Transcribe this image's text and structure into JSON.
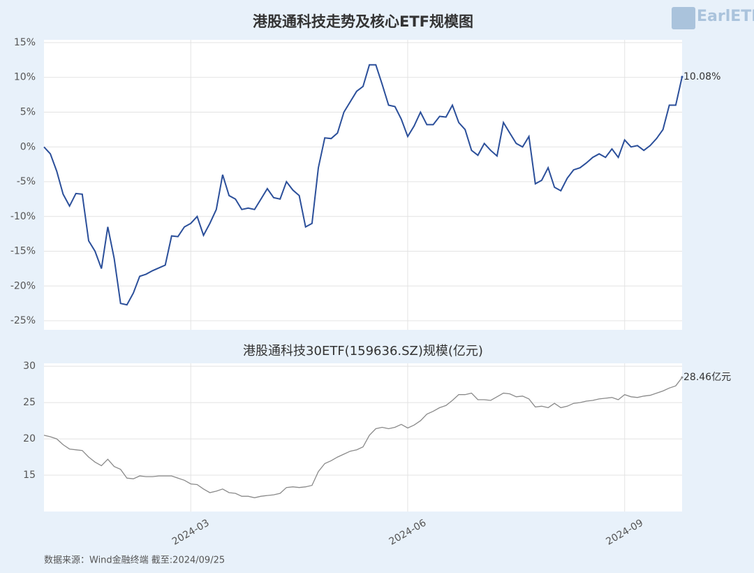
{
  "title": "港股通科技走势及核心ETF规模图",
  "logo": "EarlETF",
  "source": "数据来源：Wind金融终端 截至:2024/09/25",
  "chart_data": [
    {
      "type": "line",
      "color": "#2b4f9a",
      "ylim": [
        -26.3,
        15.4
      ],
      "yticks": [
        {
          "value": 15,
          "label": "15%"
        },
        {
          "value": 10,
          "label": "10%"
        },
        {
          "value": 5,
          "label": "5%"
        },
        {
          "value": 0,
          "label": "0%"
        },
        {
          "value": -5,
          "label": "-5%"
        },
        {
          "value": -10,
          "label": "-10%"
        },
        {
          "value": -15,
          "label": "-15%"
        },
        {
          "value": -20,
          "label": "-20%"
        },
        {
          "value": -25,
          "label": "-25%"
        }
      ],
      "grid": true,
      "annotation": "10.08%",
      "values": [
        0,
        -1,
        -3.5,
        -6.8,
        -8.5,
        -6.7,
        -6.8,
        -13.5,
        -15,
        -17.5,
        -11.5,
        -16,
        -22.5,
        -22.7,
        -21,
        -18.6,
        -18.3,
        -17.8,
        -17.4,
        -17,
        -12.8,
        -12.9,
        -11.5,
        -11,
        -10,
        -12.7,
        -11,
        -9,
        -4,
        -7,
        -7.5,
        -9,
        -8.8,
        -9,
        -7.5,
        -6,
        -7.3,
        -7.5,
        -5,
        -6.2,
        -7,
        -11.5,
        -11,
        -3,
        1.3,
        1.2,
        2,
        5,
        6.5,
        8,
        8.7,
        11.8,
        11.8,
        9,
        6,
        5.8,
        4,
        1.5,
        3,
        5,
        3.2,
        3.2,
        4.4,
        4.3,
        6,
        3.5,
        2.5,
        -0.5,
        -1.2,
        0.5,
        -0.5,
        -1.3,
        3.5,
        2,
        0.5,
        0,
        1.5,
        -5.3,
        -4.8,
        -3,
        -5.8,
        -6.3,
        -4.5,
        -3.3,
        -3,
        -2.3,
        -1.5,
        -1,
        -1.5,
        -0.3,
        -1.5,
        1,
        0,
        0.2,
        -0.5,
        0.2,
        1.2,
        2.5,
        6,
        6,
        10.08
      ]
    },
    {
      "type": "line",
      "title": "港股通科技30ETF(159636.SZ)规模(亿元)",
      "color": "#8a8a8a",
      "ylim": [
        10,
        30.4
      ],
      "yticks": [
        15,
        20,
        25,
        30
      ],
      "grid": true,
      "annotation": "28.46亿元",
      "categories": [
        null,
        null,
        null,
        null,
        null,
        null,
        null,
        null,
        null,
        null,
        null,
        null,
        null,
        null,
        null,
        null,
        null,
        null,
        null,
        null,
        null,
        null,
        null,
        "2024-03",
        null,
        null,
        null,
        null,
        null,
        null,
        null,
        null,
        null,
        null,
        null,
        null,
        null,
        null,
        null,
        null,
        null,
        null,
        null,
        null,
        null,
        null,
        null,
        null,
        null,
        null,
        null,
        null,
        null,
        null,
        null,
        null,
        null,
        "2024-06",
        null,
        null,
        null,
        null,
        null,
        null,
        null,
        null,
        null,
        null,
        null,
        null,
        null,
        null,
        null,
        null,
        null,
        null,
        null,
        null,
        null,
        null,
        null,
        null,
        null,
        null,
        null,
        null,
        null,
        null,
        null,
        null,
        null,
        "2024-09",
        null,
        null,
        null,
        null,
        null,
        null,
        null,
        null,
        null
      ],
      "values": [
        20.5,
        20.3,
        20,
        19.2,
        18.6,
        18.5,
        18.4,
        17.5,
        16.8,
        16.3,
        17.2,
        16.2,
        15.8,
        14.6,
        14.5,
        14.9,
        14.8,
        14.8,
        14.9,
        14.9,
        14.9,
        14.6,
        14.3,
        13.8,
        13.7,
        13.1,
        12.6,
        12.8,
        13.1,
        12.6,
        12.5,
        12.1,
        12.1,
        11.9,
        12.1,
        12.2,
        12.3,
        12.5,
        13.3,
        13.4,
        13.3,
        13.4,
        13.6,
        15.5,
        16.6,
        17,
        17.5,
        17.9,
        18.3,
        18.5,
        18.9,
        20.5,
        21.4,
        21.6,
        21.4,
        21.6,
        22,
        21.5,
        21.9,
        22.5,
        23.4,
        23.8,
        24.3,
        24.6,
        25.3,
        26.1,
        26.1,
        26.3,
        25.4,
        25.4,
        25.3,
        25.8,
        26.3,
        26.2,
        25.8,
        25.9,
        25.5,
        24.4,
        24.5,
        24.3,
        24.9,
        24.3,
        24.5,
        24.9,
        25,
        25.2,
        25.3,
        25.5,
        25.6,
        25.7,
        25.4,
        26.1,
        25.8,
        25.7,
        25.9,
        26,
        26.3,
        26.6,
        27,
        27.3,
        28.46
      ]
    }
  ]
}
